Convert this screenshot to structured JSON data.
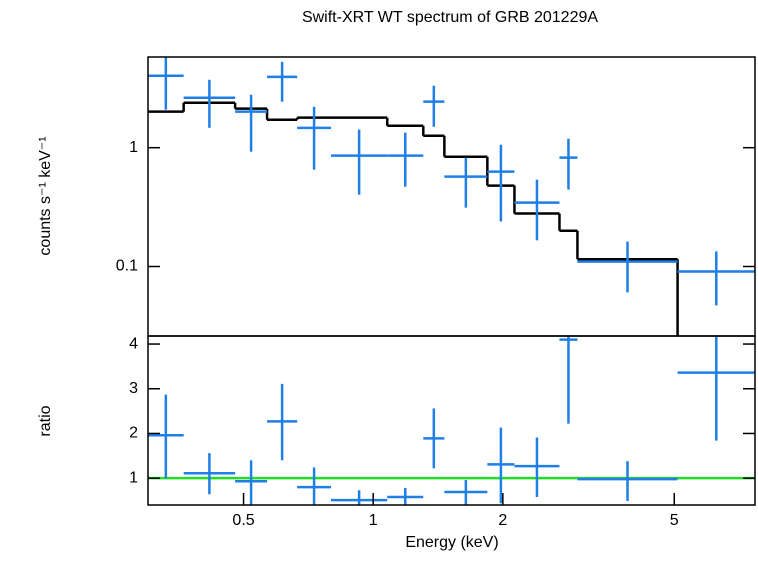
{
  "chart_data": [
    {
      "type": "spectrum",
      "title": "Swift-XRT WT spectrum of GRB 201229A",
      "ylabel": "counts s⁻¹ keV⁻¹",
      "x_lo": [
        0.3,
        0.363,
        0.478,
        0.567,
        0.666,
        0.798,
        1.078,
        1.307,
        1.463,
        1.841,
        2.128,
        2.707,
        2.98,
        5.09
      ],
      "x_hi": [
        0.363,
        0.478,
        0.567,
        0.666,
        0.798,
        1.078,
        1.307,
        1.463,
        1.841,
        2.128,
        2.707,
        2.98,
        5.09,
        7.7
      ],
      "y": [
        4.03,
        2.63,
        2.01,
        3.95,
        1.47,
        0.857,
        0.857,
        2.44,
        0.571,
        0.629,
        0.345,
        0.824,
        0.11,
        0.0908
      ],
      "y_lo": [
        2.09,
        1.47,
        0.925,
        2.44,
        0.653,
        0.403,
        0.47,
        1.5,
        0.313,
        0.239,
        0.166,
        0.444,
        0.0605,
        0.047
      ],
      "y_hi": [
        6.5,
        3.73,
        2.79,
        5.28,
        2.21,
        1.42,
        1.34,
        3.32,
        0.824,
        1.06,
        0.538,
        1.19,
        0.162,
        0.134
      ],
      "model": [
        2.01,
        2.39,
        2.13,
        1.72,
        1.79,
        1.79,
        1.53,
        1.26,
        0.84,
        0.48,
        0.279,
        0.2,
        0.115,
        0.01
      ],
      "data_color": "#1f7fe6",
      "model_color": "#000000",
      "xlim": [
        0.3,
        7.7
      ],
      "ylim": [
        0.026,
        5.8
      ],
      "yticks": [
        0.1,
        1
      ],
      "xlog": true,
      "ylog": true
    },
    {
      "type": "ratio",
      "ylabel": "ratio",
      "xlabel": "Energy (keV)",
      "x_lo": [
        0.3,
        0.363,
        0.478,
        0.567,
        0.666,
        0.798,
        1.078,
        1.307,
        1.463,
        1.841,
        2.128,
        2.707,
        2.98,
        5.09
      ],
      "x_hi": [
        0.363,
        0.478,
        0.567,
        0.666,
        0.798,
        1.078,
        1.307,
        1.463,
        1.841,
        2.128,
        2.707,
        2.98,
        5.09,
        7.7
      ],
      "y": [
        1.96,
        1.11,
        0.93,
        2.27,
        0.8,
        0.51,
        0.58,
        1.89,
        0.69,
        1.31,
        1.27,
        4.1,
        0.98,
        3.36
      ],
      "y_lo": [
        1.0,
        0.64,
        0.35,
        1.4,
        0.35,
        0.35,
        0.35,
        1.22,
        0.35,
        0.44,
        0.58,
        2.22,
        0.49,
        1.84
      ],
      "y_hi": [
        2.87,
        1.56,
        1.4,
        3.11,
        1.24,
        0.73,
        0.78,
        2.56,
        0.96,
        2.13,
        1.91,
        5.0,
        1.38,
        4.3
      ],
      "reference": 1,
      "reference_color": "#22dd22",
      "data_color": "#1f7fe6",
      "xlim": [
        0.3,
        7.7
      ],
      "ylim": [
        0.4,
        4.18
      ],
      "xticks": [
        0.5,
        1,
        2,
        5
      ],
      "yticks": [
        1,
        2,
        3,
        4
      ],
      "xlog": true,
      "ylog": false
    }
  ]
}
